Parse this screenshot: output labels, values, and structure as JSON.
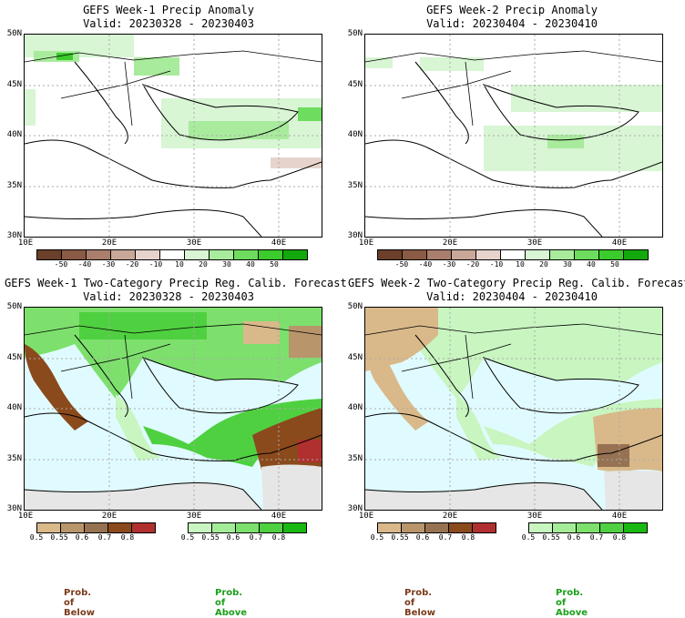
{
  "panels": [
    {
      "title": "GEFS Week-1 Precip Anomaly",
      "valid": "Valid: 20230328 - 20230403"
    },
    {
      "title": "GEFS Week-2 Precip Anomaly",
      "valid": "Valid: 20230404 - 20230410"
    },
    {
      "title": "GEFS Week-1 Two-Category Precip Reg. Calib. Forecast",
      "valid": "Valid: 20230328 - 20230403"
    },
    {
      "title": "GEFS Week-2 Two-Category Precip Reg. Calib. Forecast",
      "valid": "Valid: 20230404 - 20230410"
    }
  ],
  "axes": {
    "lat_labels": [
      "50N",
      "45N",
      "40N",
      "35N",
      "30N"
    ],
    "lon_labels": [
      "10E",
      "20E",
      "30E",
      "40E"
    ]
  },
  "anomaly_colorbar": {
    "ticks": [
      "-50",
      "-40",
      "-30",
      "-20",
      "-10",
      "10",
      "20",
      "30",
      "40",
      "50"
    ],
    "colors": [
      "#6b3f2a",
      "#8a5a44",
      "#a97e6c",
      "#c9a89a",
      "#e6d4cc",
      "#ffffff",
      "#d8f5d4",
      "#a8eb9c",
      "#6edc5e",
      "#3ccb2c",
      "#13a80c"
    ]
  },
  "prob_below_colorbar": {
    "ticks": [
      "0.5",
      "0.55",
      "0.6",
      "0.7",
      "0.8"
    ],
    "colors": [
      "#d9b98a",
      "#b8956a",
      "#967252",
      "#8a4a1c",
      "#b03030"
    ]
  },
  "prob_above_colorbar": {
    "ticks": [
      "0.5",
      "0.55",
      "0.6",
      "0.7",
      "0.8"
    ],
    "colors": [
      "#c8f5c0",
      "#a4ec98",
      "#7de06c",
      "#4fd040",
      "#19b812"
    ]
  },
  "legend": {
    "below": "Prob. of Below",
    "above": "Prob. of Above"
  },
  "colors": {
    "sea": "#e0fbff",
    "land_gray": "#e6e6e6",
    "above_color": "#1aa01a",
    "below_color": "#7a3a1a"
  }
}
